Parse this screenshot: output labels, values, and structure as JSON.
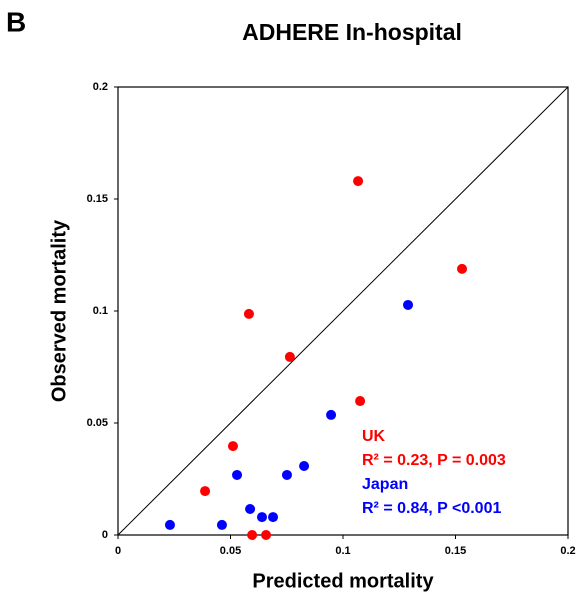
{
  "chart_data": {
    "type": "scatter",
    "panel_label": "B",
    "title": "ADHERE In-hospital",
    "xlabel": "Predicted mortality",
    "ylabel": "Observed mortality",
    "xlim": [
      0,
      0.2
    ],
    "ylim": [
      0,
      0.2
    ],
    "xticks": [
      0,
      0.05,
      0.1,
      0.15,
      0.2
    ],
    "yticks": [
      0,
      0.05,
      0.1,
      0.15,
      0.2
    ],
    "grid": false,
    "series": [
      {
        "name": "UK",
        "color": "#ff0000",
        "stats": "R² = 0.23, P = 0.003",
        "x": [
          0.1067,
          0.1529,
          0.0582,
          0.0764,
          0.1076,
          0.0511,
          0.0387,
          0.0596,
          0.0658
        ],
        "values": [
          0.158,
          0.1188,
          0.0987,
          0.0795,
          0.0598,
          0.0397,
          0.0196,
          0,
          0
        ]
      },
      {
        "name": "Japan",
        "color": "#0000ff",
        "stats": "R² = 0.84, P <0.001",
        "x": [
          0.1289,
          0.0947,
          0.0827,
          0.0751,
          0.0529,
          0.0587,
          0.064,
          0.0689,
          0.0462,
          0.0231
        ],
        "values": [
          0.1027,
          0.0536,
          0.0308,
          0.0268,
          0.0268,
          0.0116,
          0.008,
          0.008,
          0.0045,
          0.0045
        ]
      }
    ]
  }
}
